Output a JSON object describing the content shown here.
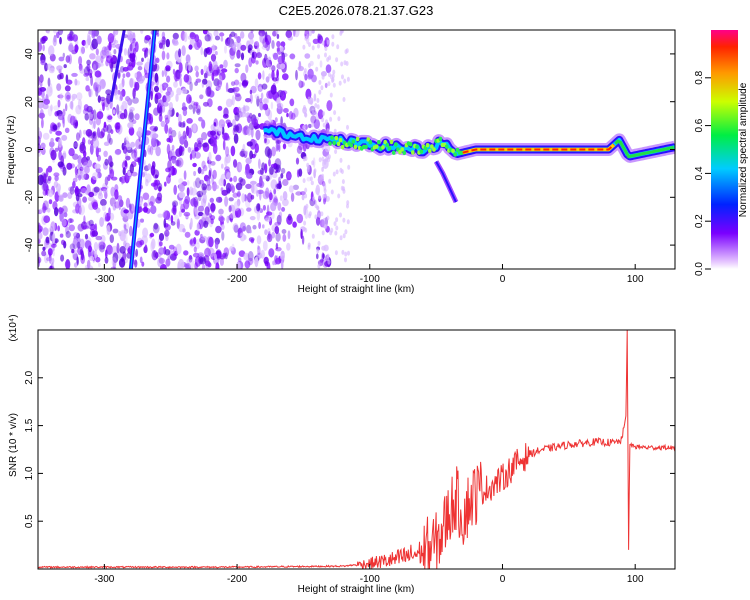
{
  "title": "C2E5.2026.078.21.37.G23",
  "chart_data": [
    {
      "type": "heatmap",
      "xlabel": "Height of straight line (km)",
      "ylabel": "Frequency (Hz)",
      "xlim": [
        -350,
        130
      ],
      "ylim": [
        -50,
        50
      ],
      "xticks": [
        -300,
        -200,
        -100,
        0,
        100
      ],
      "xtick_labels": [
        "-300",
        "-200",
        "-100",
        "0",
        "100"
      ],
      "yticks": [
        -40,
        -20,
        0,
        20,
        40
      ],
      "ytick_labels": [
        "-40",
        "-20",
        "0",
        "20",
        "40"
      ],
      "colorbar": {
        "label": "Normalized spectral amplitude",
        "range": [
          0,
          1
        ],
        "ticks": [
          0.0,
          0.2,
          0.4,
          0.6,
          0.8
        ],
        "tick_labels": [
          "0.0",
          "0.2",
          "0.4",
          "0.6",
          "0.8"
        ]
      },
      "features": {
        "noise_region_x": [
          -350,
          -130
        ],
        "diagonal_trace": {
          "x_start": -280,
          "x_end": -262,
          "freq_start": -50,
          "freq_end": 50
        },
        "diagonal_trace_2": {
          "x_start": -295,
          "x_end": -285,
          "freq_start": 20,
          "freq_end": 50
        },
        "tone_centerline": {
          "x": [
            -180,
            -130,
            -100,
            -80,
            -60,
            -45,
            -35,
            -20,
            0,
            40,
            80,
            88,
            95,
            130
          ],
          "freq": [
            8,
            4,
            2,
            1,
            0,
            3,
            -2,
            0,
            0,
            0,
            0,
            4,
            -3,
            1
          ]
        },
        "downward_branch": {
          "x": [
            -50,
            -45,
            -40,
            -35
          ],
          "freq": [
            -5,
            -10,
            -16,
            -22
          ]
        }
      }
    },
    {
      "type": "line",
      "xlabel": "Height of straight line (km)",
      "ylabel": "SNR (10 * v/v)",
      "scale_label": "(x10⁴)",
      "xlim": [
        -350,
        130
      ],
      "ylim": [
        0,
        2.5
      ],
      "xticks": [
        -300,
        -200,
        -100,
        0,
        100
      ],
      "xtick_labels": [
        "-300",
        "-200",
        "-100",
        "0",
        "100"
      ],
      "yticks": [
        0.5,
        1.0,
        1.5,
        2.0
      ],
      "ytick_labels": [
        "0.5",
        "1.0",
        "1.5",
        "2.0"
      ],
      "series": [
        {
          "name": "SNR",
          "color": "#ee3333",
          "x": [
            -350,
            -300,
            -200,
            -120,
            -100,
            -80,
            -60,
            -50,
            -45,
            -40,
            -35,
            -30,
            -25,
            -20,
            -10,
            0,
            10,
            20,
            30,
            50,
            70,
            85,
            90,
            93,
            94,
            95,
            96,
            100,
            110,
            130
          ],
          "y": [
            0.02,
            0.02,
            0.02,
            0.03,
            0.06,
            0.1,
            0.18,
            0.25,
            0.4,
            0.6,
            0.75,
            0.55,
            0.7,
            0.8,
            0.85,
            0.95,
            1.1,
            1.2,
            1.25,
            1.3,
            1.33,
            1.32,
            1.35,
            1.6,
            2.5,
            0.2,
            1.3,
            1.28,
            1.27,
            1.27
          ]
        }
      ]
    }
  ]
}
